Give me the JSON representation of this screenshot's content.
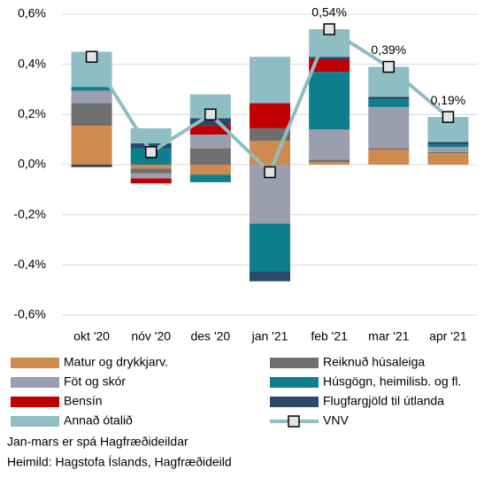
{
  "chart_data": {
    "type": "bar",
    "categories": [
      "okt '20",
      "nóv '20",
      "des '20",
      "jan '21",
      "feb '21",
      "mar '21",
      "apr '21"
    ],
    "series": [
      {
        "name": "Matur og drykkjarv.",
        "color": "#cf8a4e",
        "values": [
          0.155,
          -0.015,
          -0.04,
          0.095,
          0.01,
          0.06,
          0.045
        ]
      },
      {
        "name": "Reiknuð húsaleiga",
        "color": "#6f6f6f",
        "values": [
          0.09,
          -0.02,
          0.065,
          0.05,
          0.01,
          0.005,
          0.005
        ]
      },
      {
        "name": "Föt og skór",
        "color": "#9a9eaf",
        "values": [
          0.05,
          -0.02,
          0.055,
          -0.235,
          0.12,
          0.165,
          0.02
        ]
      },
      {
        "name": "Húsgögn, heimilisb. og fl.",
        "color": "#0e7e8c",
        "values": [
          0.015,
          0.065,
          -0.03,
          -0.19,
          0.23,
          0.03,
          0.01
        ]
      },
      {
        "name": "Bensín",
        "color": "#c00000",
        "values": [
          0,
          -0.02,
          0.035,
          0.1,
          0.05,
          0,
          0
        ]
      },
      {
        "name": "Flugfargjöld til útlanda",
        "color": "#2b4a6b",
        "values": [
          -0.01,
          0.02,
          0.03,
          -0.04,
          0.01,
          0.01,
          0.01
        ]
      },
      {
        "name": "Annað ótalið",
        "color": "#8fbdc4",
        "values": [
          0.14,
          0.06,
          0.095,
          0.185,
          0.11,
          0.12,
          0.1
        ]
      },
      {
        "name": "VNV",
        "type": "line",
        "color": "#8fbdc4",
        "values": [
          0.43,
          0.05,
          0.2,
          -0.03,
          0.54,
          0.39,
          0.19
        ],
        "value_labels": [
          null,
          null,
          null,
          null,
          "0,54%",
          "0,39%",
          "0,19%"
        ]
      }
    ],
    "ylim": [
      -0.6,
      0.6
    ],
    "yticks": [
      {
        "value": 0.6,
        "label": "0,6%"
      },
      {
        "value": 0.4,
        "label": "0,4%"
      },
      {
        "value": 0.2,
        "label": "0,2%"
      },
      {
        "value": 0,
        "label": "0,0%"
      },
      {
        "value": -0.2,
        "label": "-0,2%"
      },
      {
        "value": -0.4,
        "label": "-0,4%"
      },
      {
        "value": -0.6,
        "label": "-0,6%"
      }
    ],
    "grid": true,
    "notes": [
      "Jan-mars er spá Hagfræðideildar",
      "Heimild: Hagstofa Íslands, Hagfræðideild"
    ]
  }
}
